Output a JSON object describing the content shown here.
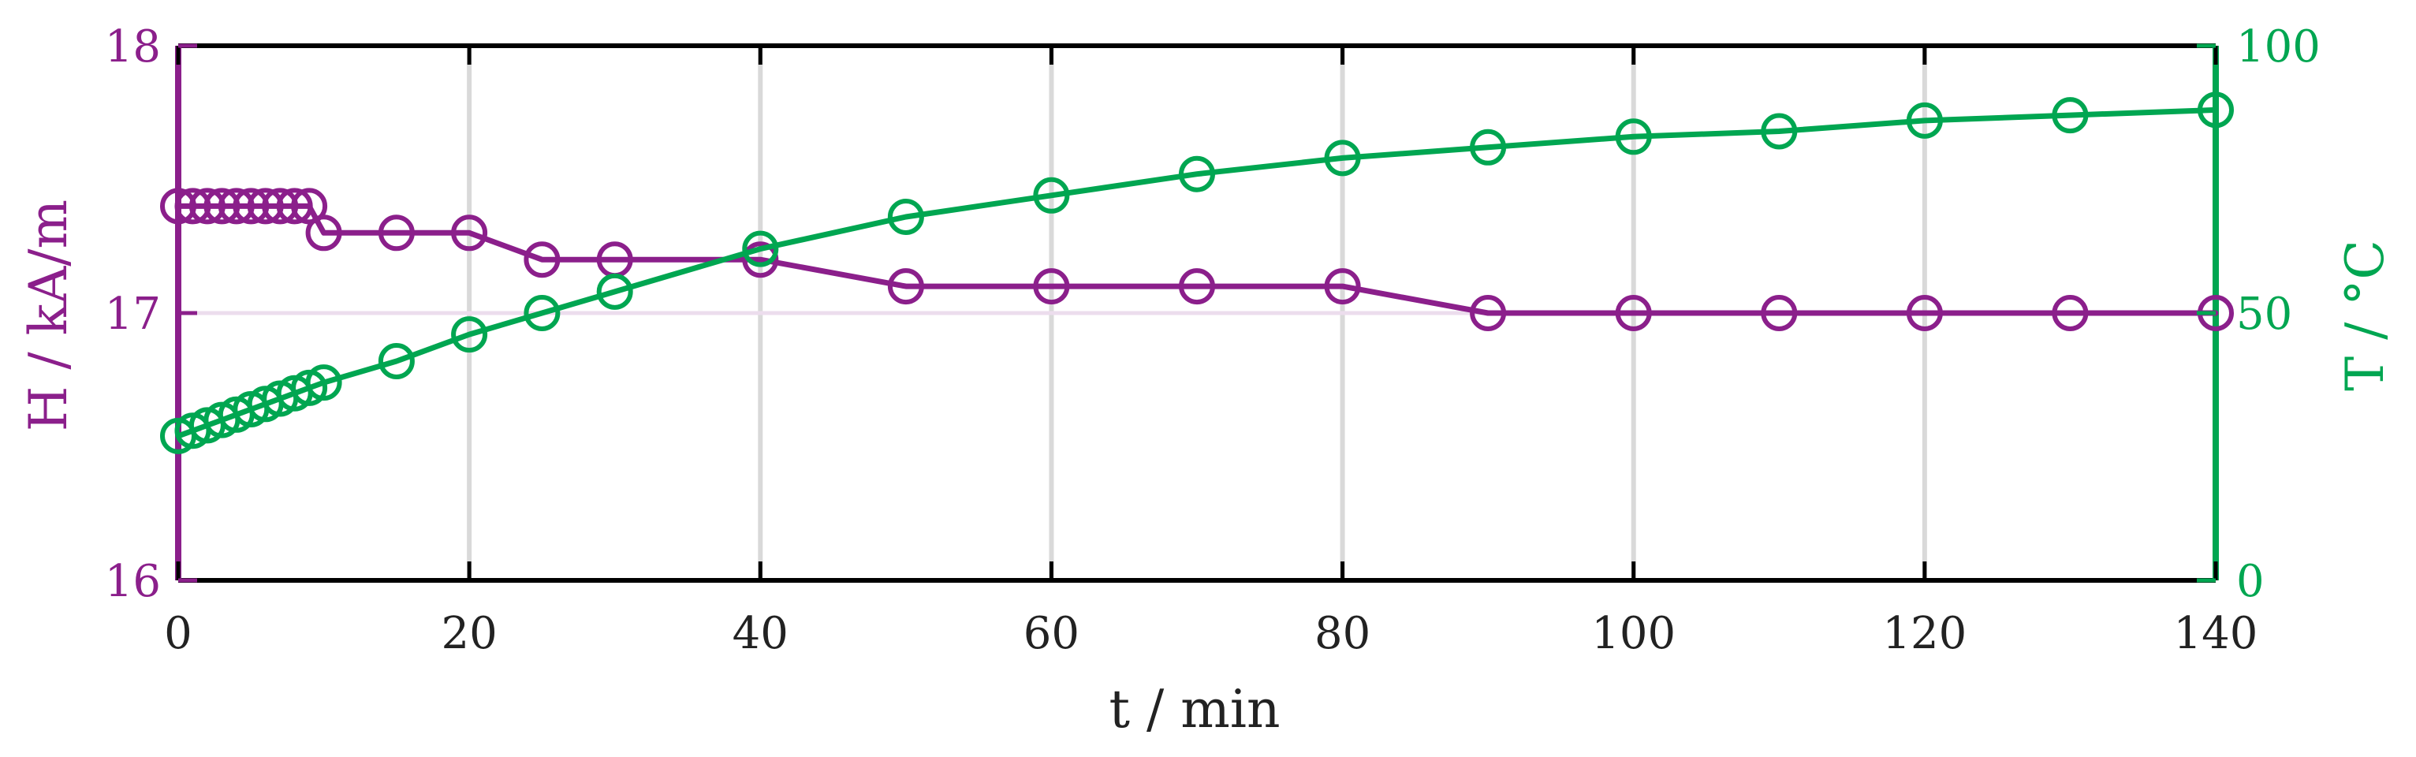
{
  "chart_data": {
    "type": "line",
    "title": "",
    "xlabel": "t / min",
    "ylabel_left": "H / kA/m",
    "ylabel_right": "T / °C",
    "xlim": [
      0,
      140
    ],
    "ylim_left": [
      16,
      18
    ],
    "ylim_right": [
      0,
      100
    ],
    "x_ticks": [
      "0",
      "20",
      "40",
      "60",
      "80",
      "100",
      "120",
      "140"
    ],
    "y_left_ticks": [
      "16",
      "17",
      "18"
    ],
    "y_right_ticks": [
      "0",
      "50",
      "100"
    ],
    "grid": true,
    "colors": {
      "left": "#8B1F8B",
      "right": "#00A651",
      "grid": "#D9D9D9",
      "frame": "#000000"
    },
    "series": [
      {
        "axis": "left",
        "color": "#8B1F8B",
        "marker": "circle",
        "x": [
          0,
          1,
          2,
          3,
          4,
          5,
          6,
          7,
          8,
          9,
          10,
          15,
          20,
          25,
          30,
          40,
          50,
          60,
          70,
          80,
          90,
          100,
          110,
          120,
          130,
          140
        ],
        "y": [
          17.4,
          17.4,
          17.4,
          17.4,
          17.4,
          17.4,
          17.4,
          17.4,
          17.4,
          17.4,
          17.3,
          17.3,
          17.3,
          17.2,
          17.2,
          17.2,
          17.1,
          17.1,
          17.1,
          17.1,
          17.0,
          17.0,
          17.0,
          17.0,
          17.0,
          17.0
        ]
      },
      {
        "axis": "right",
        "color": "#00A651",
        "marker": "circle",
        "x": [
          0,
          1,
          2,
          3,
          4,
          5,
          6,
          7,
          8,
          9,
          10,
          15,
          20,
          25,
          30,
          40,
          50,
          60,
          70,
          80,
          90,
          100,
          110,
          120,
          130,
          140
        ],
        "y": [
          27,
          28,
          29,
          30,
          31,
          32,
          33,
          34,
          35,
          36,
          37,
          41,
          46,
          50,
          54,
          62,
          68,
          72,
          76,
          79,
          81,
          83,
          84,
          86,
          87,
          88
        ]
      }
    ]
  }
}
